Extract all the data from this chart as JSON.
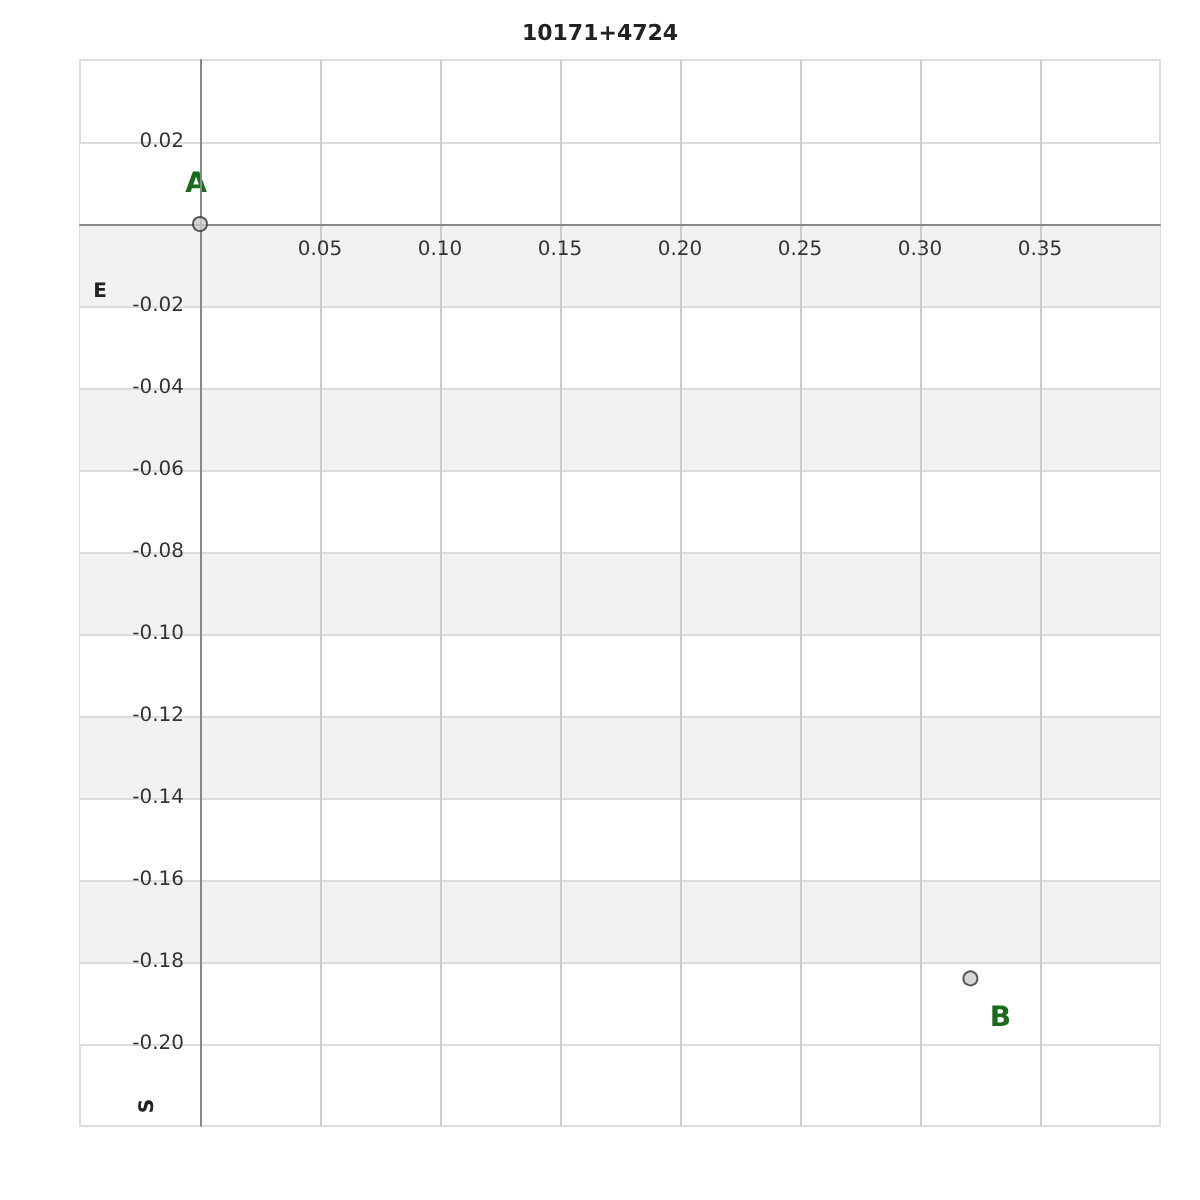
{
  "chart_data": {
    "type": "scatter",
    "title": "10171+4724",
    "xlabel": "E",
    "ylabel": "S",
    "x": [
      0,
      0.321
    ],
    "series": [
      {
        "color": "#cccccc",
        "values": [
          0,
          -0.184
        ]
      }
    ],
    "xlim": [
      -0.05,
      0.4
    ],
    "xticks": [
      0.05,
      {
        "value": 0.1,
        "label": "0.10"
      },
      0.15,
      {
        "value": 0.2,
        "label": "0.20"
      },
      0.25,
      {
        "value": 0.3,
        "label": "0.30"
      },
      0.35
    ],
    "ylim": [
      -0.22,
      0.04
    ],
    "yticks": [
      0.02,
      {
        "value": 0,
        "label": null
      },
      -0.02,
      -0.04,
      -0.06,
      -0.08,
      {
        "value": -0.1,
        "label": "-0.10"
      },
      -0.12,
      -0.14,
      -0.16,
      -0.18,
      {
        "value": -0.2,
        "label": "-0.20"
      }
    ],
    "grid": true,
    "marker": "circle",
    "annotations": [
      {
        "text": "A",
        "x": 0,
        "y": 0
      },
      {
        "text": "B",
        "x": 0.321,
        "y": -0.184
      }
    ]
  }
}
